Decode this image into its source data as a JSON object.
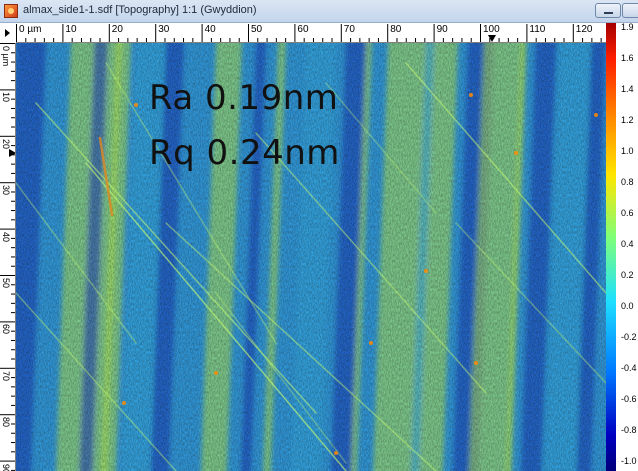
{
  "window": {
    "title": "almax_side1-1.sdf [Topography] 1:1 (Gwyddion)"
  },
  "ruler_x": {
    "labels": [
      "0 µm",
      "10",
      "20",
      "30",
      "40",
      "50",
      "60",
      "70",
      "80",
      "90",
      "100",
      "110",
      "120"
    ]
  },
  "ruler_y": {
    "labels": [
      "0 µm",
      "10",
      "20",
      "30",
      "40",
      "50",
      "60",
      "70",
      "80",
      "90"
    ]
  },
  "overlay": {
    "ra": "Ra 0.19nm",
    "rq": "Rq 0.24nm"
  },
  "colorbar": {
    "labels": [
      "1.9",
      "1.6",
      "1.4",
      "1.2",
      "1.0",
      "0.8",
      "0.6",
      "0.4",
      "0.2",
      "0.0",
      "-0.2",
      "-0.4",
      "-0.6",
      "-0.8",
      "-1.0"
    ]
  },
  "colors": {
    "low": "#0a2fbf",
    "mid": "#1aa0e8",
    "high": "#b8f040"
  }
}
